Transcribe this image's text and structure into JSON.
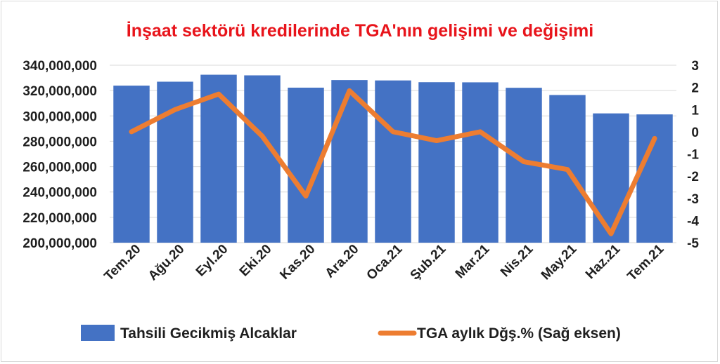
{
  "chart_data": {
    "type": "bar+line",
    "title": "İnşaat sektörü kredilerinde TGA'nın gelişimi ve değişimi",
    "title_color": "#e8141b",
    "categories": [
      "Tem.20",
      "Ağu.20",
      "Eyl.20",
      "Eki.20",
      "Kas.20",
      "Ara.20",
      "Oca.21",
      "Şub.21",
      "Mar.21",
      "Nis.21",
      "May.21",
      "Haz.21",
      "Tem.21"
    ],
    "series": [
      {
        "name": "Tahsili Gecikmiş Alcaklar",
        "type": "bar",
        "axis": "left",
        "color": "#4472c4",
        "values": [
          323900000,
          327000000,
          332500000,
          332000000,
          322300000,
          328300000,
          328000000,
          326600000,
          326500000,
          322200000,
          316500000,
          302000000,
          301200000
        ]
      },
      {
        "name": "TGA aylık Dğş.% (Sağ eksen)",
        "type": "line",
        "axis": "right",
        "color": "#ed7d31",
        "values": [
          0.0,
          1.0,
          1.7,
          -0.2,
          -2.9,
          1.85,
          0.0,
          -0.4,
          0.0,
          -1.35,
          -1.7,
          -4.6,
          -0.3
        ]
      }
    ],
    "y_left": {
      "min": 200000000,
      "max": 340000000,
      "step": 20000000,
      "tick_labels": [
        "200,000,000",
        "220,000,000",
        "240,000,000",
        "260,000,000",
        "280,000,000",
        "300,000,000",
        "320,000,000",
        "340,000,000"
      ]
    },
    "y_right": {
      "min": -5,
      "max": 3,
      "step": 1,
      "tick_labels": [
        "-5",
        "-4",
        "-3",
        "-2",
        "-1",
        "0",
        "1",
        "2",
        "3"
      ]
    },
    "grid": true,
    "legend_position": "bottom"
  }
}
